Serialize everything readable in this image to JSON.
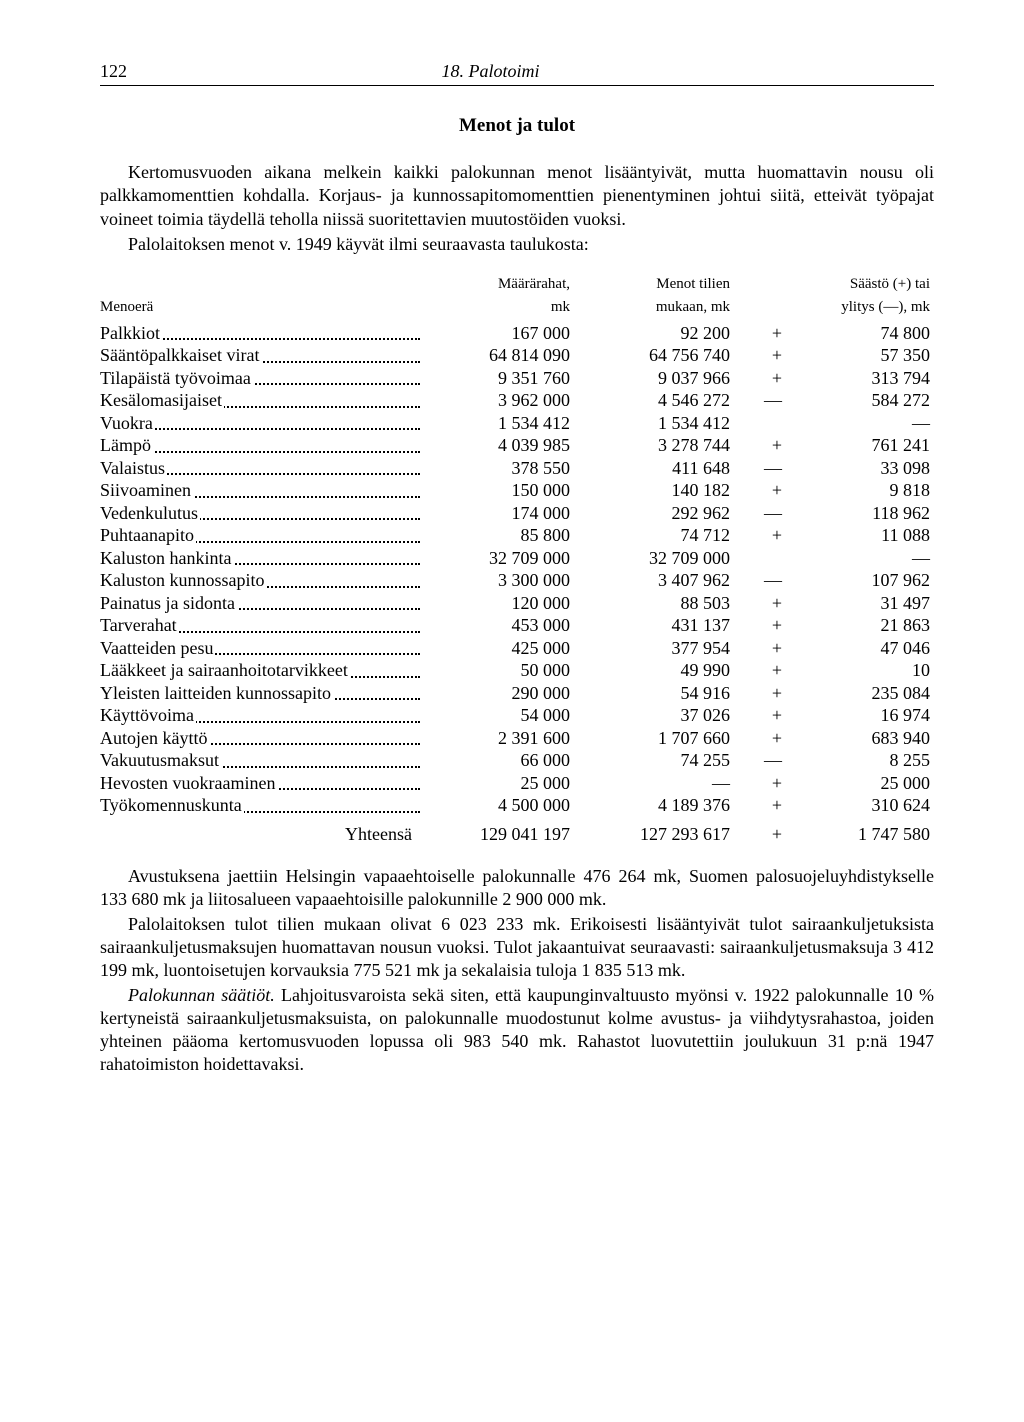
{
  "page": {
    "number": "122",
    "chapter": "18. Palotoimi"
  },
  "section_title": "Menot ja tulot",
  "intro_paragraphs": [
    "Kertomusvuoden aikana melkein kaikki palokunnan menot lisääntyivät, mutta huomattavin nousu oli palkkamomenttien kohdalla. Korjaus- ja kunnossapitomomenttien pienentyminen johtui siitä, etteivät työpajat voineet toimia täydellä teholla niissä suoritettavien muutostöiden vuoksi.",
    "Palolaitoksen menot v. 1949 käyvät ilmi seuraavasta taulukosta:"
  ],
  "table": {
    "headers": {
      "label_top": "",
      "label_bottom": "Menoerä",
      "col1_top": "Määrärahat,",
      "col1_bottom": "mk",
      "col2_top": "Menot tilien",
      "col2_bottom": "mukaan, mk",
      "col3_top": "Säästö (+) tai",
      "col3_bottom": "ylitys (—), mk"
    },
    "rows": [
      {
        "label": "Palkkiot",
        "c1": "167 000",
        "c2": "92 200",
        "sign": "+",
        "c3": "74 800"
      },
      {
        "label": "Sääntöpalkkaiset virat",
        "c1": "64 814 090",
        "c2": "64 756 740",
        "sign": "+",
        "c3": "57 350"
      },
      {
        "label": "Tilapäistä työvoimaa",
        "c1": "9 351 760",
        "c2": "9 037 966",
        "sign": "+",
        "c3": "313 794"
      },
      {
        "label": "Kesälomasijaiset",
        "c1": "3 962 000",
        "c2": "4 546 272",
        "sign": "—",
        "c3": "584 272"
      },
      {
        "label": "Vuokra",
        "c1": "1 534 412",
        "c2": "1 534 412",
        "sign": "",
        "c3": "—"
      },
      {
        "label": "Lämpö",
        "c1": "4 039 985",
        "c2": "3 278 744",
        "sign": "+",
        "c3": "761 241"
      },
      {
        "label": "Valaistus",
        "c1": "378 550",
        "c2": "411 648",
        "sign": "—",
        "c3": "33 098"
      },
      {
        "label": "Siivoaminen",
        "c1": "150 000",
        "c2": "140 182",
        "sign": "+",
        "c3": "9 818"
      },
      {
        "label": "Vedenkulutus",
        "c1": "174 000",
        "c2": "292 962",
        "sign": "—",
        "c3": "118 962"
      },
      {
        "label": "Puhtaanapito",
        "c1": "85 800",
        "c2": "74 712",
        "sign": "+",
        "c3": "11 088"
      },
      {
        "label": "Kaluston hankinta",
        "c1": "32 709 000",
        "c2": "32 709 000",
        "sign": "",
        "c3": "—"
      },
      {
        "label": "Kaluston kunnossapito",
        "c1": "3 300 000",
        "c2": "3 407 962",
        "sign": "—",
        "c3": "107 962"
      },
      {
        "label": "Painatus ja sidonta",
        "c1": "120 000",
        "c2": "88 503",
        "sign": "+",
        "c3": "31 497"
      },
      {
        "label": "Tarverahat",
        "c1": "453 000",
        "c2": "431 137",
        "sign": "+",
        "c3": "21 863"
      },
      {
        "label": "Vaatteiden pesu",
        "c1": "425 000",
        "c2": "377 954",
        "sign": "+",
        "c3": "47 046"
      },
      {
        "label": "Lääkkeet ja sairaanhoitotarvikkeet",
        "c1": "50 000",
        "c2": "49 990",
        "sign": "+",
        "c3": "10"
      },
      {
        "label": "Yleisten laitteiden kunnossapito",
        "c1": "290 000",
        "c2": "54 916",
        "sign": "+",
        "c3": "235 084"
      },
      {
        "label": "Käyttövoima",
        "c1": "54 000",
        "c2": "37 026",
        "sign": "+",
        "c3": "16 974"
      },
      {
        "label": "Autojen käyttö",
        "c1": "2 391 600",
        "c2": "1 707 660",
        "sign": "+",
        "c3": "683 940"
      },
      {
        "label": "Vakuutusmaksut",
        "c1": "66 000",
        "c2": "74 255",
        "sign": "—",
        "c3": "8 255"
      },
      {
        "label": "Hevosten vuokraaminen",
        "c1": "25 000",
        "c2": "—",
        "sign": "+",
        "c3": "25 000"
      },
      {
        "label": "Työkomennuskunta",
        "c1": "4 500 000",
        "c2": "4 189 376",
        "sign": "+",
        "c3": "310 624"
      }
    ],
    "total": {
      "label": "Yhteensä",
      "c1": "129 041 197",
      "c2": "127 293 617",
      "sign": "+",
      "c3": "1 747 580"
    }
  },
  "body_paragraphs": [
    {
      "text": "Avustuksena jaettiin Helsingin vapaaehtoiselle palokunnalle 476 264 mk, Suomen palosuojeluyhdistykselle 133 680 mk ja liitosalueen vapaaehtoisille palokunnille 2 900 000 mk."
    },
    {
      "text": "Palolaitoksen tulot tilien mukaan olivat 6 023 233 mk. Erikoisesti lisääntyivät tulot sairaankuljetuksista sairaankuljetusmaksujen huomattavan nousun vuoksi. Tulot jakaantuivat seuraavasti: sairaankuljetusmaksuja 3 412 199 mk, luontoisetujen korvauksia 775 521 mk ja sekalaisia tuloja 1 835 513 mk."
    },
    {
      "leading_italic": "Palokunnan säätiöt.",
      "text": " Lahjoitusvaroista sekä siten, että kaupunginvaltuusto myönsi v. 1922 palokunnalle 10 % kertyneistä sairaankuljetusmaksuista, on palokunnalle muodostunut kolme avustus- ja viihdytysrahastoa, joiden yhteinen pääoma kertomusvuoden lopussa oli 983 540 mk. Rahastot luovutettiin joulukuun 31 p:nä 1947 rahatoimiston hoidettavaksi."
    }
  ]
}
